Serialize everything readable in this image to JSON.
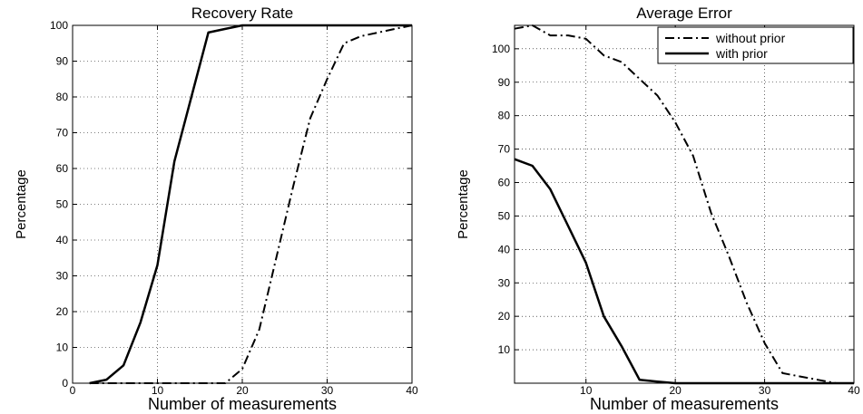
{
  "chart_data": [
    {
      "type": "line",
      "title": "Recovery Rate",
      "xlabel": "Number of measurements",
      "ylabel": "Percentage",
      "xlim": [
        0,
        40
      ],
      "ylim": [
        0,
        100
      ],
      "xticks": [
        0,
        10,
        20,
        30,
        40
      ],
      "yticks": [
        0,
        10,
        20,
        30,
        40,
        50,
        60,
        70,
        80,
        90,
        100
      ],
      "grid": true,
      "legend": null,
      "series": [
        {
          "style": "solid",
          "x": [
            2,
            4,
            6,
            8,
            10,
            12,
            14,
            16,
            18,
            20,
            22,
            24,
            26,
            28,
            30,
            32,
            34,
            36,
            38,
            40
          ],
          "y": [
            0,
            1,
            5,
            17,
            33,
            62,
            80,
            98,
            99,
            100,
            100,
            100,
            100,
            100,
            100,
            100,
            100,
            100,
            100,
            100
          ]
        },
        {
          "style": "dashdot",
          "x": [
            2,
            4,
            6,
            8,
            10,
            12,
            14,
            16,
            18,
            20,
            22,
            24,
            26,
            28,
            30,
            32,
            34,
            36,
            38,
            40
          ],
          "y": [
            0,
            0,
            0,
            0,
            0,
            0,
            0,
            0,
            0,
            4,
            15,
            35,
            55,
            74,
            85,
            95,
            97,
            98,
            99,
            100
          ]
        }
      ]
    },
    {
      "type": "line",
      "title": "Average Error",
      "xlabel": "Number of measurements",
      "ylabel": "Percentage",
      "xlim": [
        2,
        40
      ],
      "ylim": [
        0,
        107
      ],
      "xticks": [
        10,
        20,
        30,
        40
      ],
      "yticks": [
        10,
        20,
        30,
        40,
        50,
        60,
        70,
        80,
        90,
        100
      ],
      "grid": true,
      "legend": "top-right",
      "series": [
        {
          "name": "without prior",
          "style": "dashdot",
          "x": [
            2,
            4,
            6,
            8,
            10,
            12,
            14,
            16,
            18,
            20,
            22,
            24,
            26,
            28,
            30,
            32,
            34,
            36,
            38,
            40
          ],
          "y": [
            106,
            107,
            104,
            104,
            103,
            98,
            96,
            91,
            86,
            78,
            68,
            51,
            38,
            24,
            12,
            3,
            2,
            1,
            0,
            0
          ]
        },
        {
          "name": "with prior",
          "style": "solid",
          "x": [
            2,
            4,
            6,
            8,
            10,
            12,
            14,
            16,
            18,
            20,
            22,
            24,
            26,
            28,
            30,
            32,
            34,
            36,
            38,
            40
          ],
          "y": [
            67,
            65,
            58,
            47,
            36,
            20,
            11,
            1,
            0.5,
            0,
            0,
            0,
            0,
            0,
            0,
            0,
            0,
            0,
            0,
            0
          ]
        }
      ]
    }
  ]
}
